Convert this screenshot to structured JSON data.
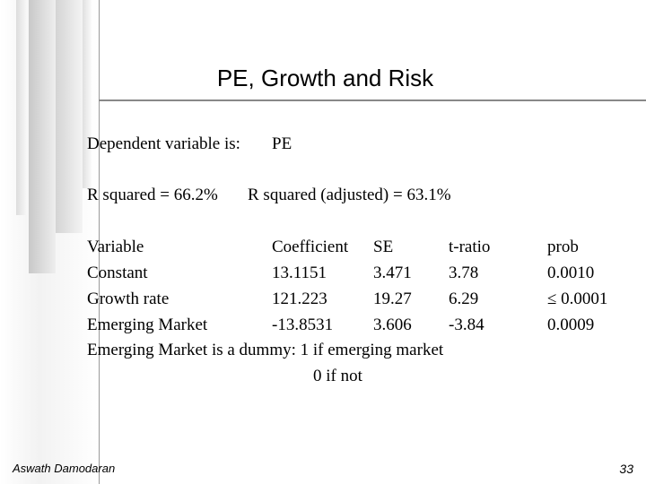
{
  "title": "PE, Growth and Risk",
  "dependent": {
    "label": "Dependent variable is:",
    "value": "PE"
  },
  "r_squared": [
    "R squared = 66.2%",
    "R squared (adjusted) = 63.1%"
  ],
  "table": {
    "header": [
      "Variable",
      "Coefficient",
      "SE",
      "t-ratio",
      "prob"
    ],
    "rows": [
      [
        "Constant",
        "13.1151",
        "3.471",
        "3.78",
        "0.0010"
      ],
      [
        "Growth rate",
        "121.223",
        "19.27",
        "6.29",
        "≤ 0.0001"
      ],
      [
        "Emerging Market",
        "-13.8531",
        "3.606",
        "-3.84",
        "0.0009"
      ]
    ]
  },
  "note": [
    "Emerging Market is a dummy: 1 if emerging market",
    "0 if not"
  ],
  "footer": {
    "author": "Aswath Damodaran",
    "page": "33"
  }
}
